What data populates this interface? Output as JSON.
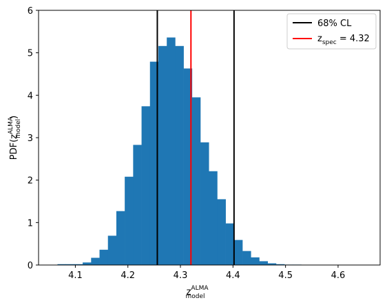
{
  "chart_data": {
    "type": "bar",
    "subtype": "histogram",
    "bin_edges": [
      4.066,
      4.082,
      4.098,
      4.114,
      4.13,
      4.146,
      4.162,
      4.178,
      4.194,
      4.21,
      4.226,
      4.242,
      4.258,
      4.274,
      4.29,
      4.306,
      4.322,
      4.338,
      4.354,
      4.37,
      4.386,
      4.402,
      4.418,
      4.434,
      4.45,
      4.466,
      4.482,
      4.498,
      4.514,
      4.53,
      4.546,
      4.562,
      4.578,
      4.594,
      4.61
    ],
    "values": [
      0.02,
      0.02,
      0.02,
      0.06,
      0.17,
      0.36,
      0.69,
      1.27,
      2.08,
      2.83,
      3.74,
      4.79,
      5.16,
      5.36,
      5.16,
      4.63,
      3.95,
      2.89,
      2.21,
      1.55,
      0.98,
      0.59,
      0.33,
      0.18,
      0.09,
      0.04,
      0.02,
      0.01,
      0.01,
      0.0,
      0.0,
      0.0,
      0.0,
      0.0
    ],
    "bar_color": "#1f77b4",
    "xlim": [
      4.03,
      4.68
    ],
    "ylim": [
      0,
      6
    ],
    "xticks": [
      "4.1",
      "4.2",
      "4.3",
      "4.4",
      "4.5",
      "4.6"
    ],
    "yticks": [
      "0",
      "1",
      "2",
      "3",
      "4",
      "5",
      "6"
    ],
    "xlabel": {
      "base": "z",
      "sup": "ALMA",
      "sub": "model"
    },
    "ylabel": {
      "prefix": "PDF",
      "base": "z",
      "sup": "ALMA",
      "sub": "model"
    },
    "vlines": [
      {
        "x": 4.256,
        "color": "#000000",
        "role": "cl-lower"
      },
      {
        "x": 4.402,
        "color": "#000000",
        "role": "cl-upper"
      },
      {
        "x": 4.32,
        "color": "#ff0000",
        "role": "spec"
      }
    ],
    "legend": {
      "placement": "top-right",
      "entries": [
        {
          "label": "68% CL",
          "color": "#000000"
        },
        {
          "label_base": "z",
          "label_sub": "spec",
          "label_rest": " = 4.32",
          "color": "#ff0000"
        }
      ]
    }
  }
}
